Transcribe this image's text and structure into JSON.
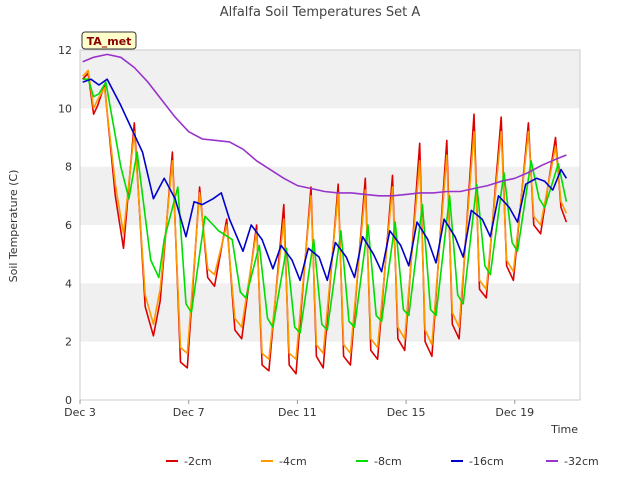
{
  "chart_data": {
    "type": "line",
    "title": "Alfalfa Soil Temperatures Set A",
    "xlabel": "Time",
    "ylabel": "Soil Temperature (C)",
    "badge": "TA_met",
    "xlim": [
      3,
      21.4
    ],
    "ylim": [
      0,
      12
    ],
    "x_ticks": [
      {
        "value": 3,
        "label": "Dec 3"
      },
      {
        "value": 7,
        "label": "Dec 7"
      },
      {
        "value": 11,
        "label": "Dec 11"
      },
      {
        "value": 15,
        "label": "Dec 15"
      },
      {
        "value": 19,
        "label": "Dec 19"
      }
    ],
    "y_ticks": [
      0,
      2,
      4,
      6,
      8,
      10,
      12
    ],
    "grid": "horizontal bands",
    "legend_position": "bottom",
    "x_unit": "day of December",
    "series": [
      {
        "name": "-2cm",
        "color": "#dd0000",
        "x": [
          3.1,
          3.3,
          3.5,
          3.65,
          3.9,
          4.3,
          4.6,
          5.0,
          5.4,
          5.7,
          5.95,
          6.4,
          6.7,
          6.95,
          7.4,
          7.7,
          7.95,
          8.4,
          8.7,
          8.95,
          9.5,
          9.7,
          9.95,
          10.5,
          10.7,
          10.95,
          11.5,
          11.7,
          11.95,
          12.5,
          12.7,
          12.95,
          13.5,
          13.7,
          13.95,
          14.5,
          14.7,
          14.95,
          15.5,
          15.7,
          15.95,
          16.5,
          16.7,
          16.95,
          17.5,
          17.7,
          17.95,
          18.5,
          18.7,
          18.95,
          19.5,
          19.7,
          19.95,
          20.5,
          20.7,
          20.9
        ],
        "y": [
          11.0,
          11.2,
          9.8,
          10.1,
          10.8,
          7.0,
          5.2,
          9.5,
          3.2,
          2.2,
          3.4,
          8.5,
          1.3,
          1.1,
          7.3,
          4.2,
          3.9,
          6.2,
          2.4,
          2.1,
          6.0,
          1.2,
          1.0,
          6.7,
          1.2,
          0.9,
          7.3,
          1.5,
          1.1,
          7.4,
          1.5,
          1.2,
          7.6,
          1.7,
          1.4,
          7.7,
          2.1,
          1.7,
          8.8,
          2.0,
          1.5,
          8.9,
          2.6,
          2.1,
          9.8,
          3.8,
          3.5,
          9.7,
          4.6,
          4.1,
          9.5,
          6.0,
          5.7,
          9.0,
          6.6,
          6.1
        ]
      },
      {
        "name": "-4cm",
        "color": "#ff9900",
        "x": [
          3.1,
          3.3,
          3.5,
          3.65,
          3.9,
          4.3,
          4.6,
          5.0,
          5.4,
          5.7,
          5.95,
          6.4,
          6.7,
          6.95,
          7.4,
          7.7,
          7.95,
          8.4,
          8.7,
          8.95,
          9.5,
          9.7,
          9.95,
          10.5,
          10.7,
          10.95,
          11.5,
          11.7,
          11.95,
          12.5,
          12.7,
          12.95,
          13.5,
          13.7,
          13.95,
          14.5,
          14.7,
          14.95,
          15.5,
          15.7,
          15.95,
          16.5,
          16.7,
          16.95,
          17.5,
          17.7,
          17.95,
          18.5,
          18.7,
          18.95,
          19.5,
          19.7,
          19.95,
          20.5,
          20.7,
          20.9
        ],
        "y": [
          11.1,
          11.3,
          10.0,
          10.3,
          10.7,
          7.4,
          5.7,
          9.2,
          3.6,
          2.6,
          3.8,
          8.2,
          1.8,
          1.6,
          7.1,
          4.5,
          4.3,
          6.0,
          2.8,
          2.5,
          5.8,
          1.6,
          1.4,
          6.2,
          1.6,
          1.4,
          7.0,
          1.9,
          1.6,
          7.1,
          1.9,
          1.6,
          7.2,
          2.1,
          1.8,
          7.3,
          2.5,
          2.1,
          8.2,
          2.4,
          1.9,
          8.4,
          3.0,
          2.5,
          9.2,
          4.1,
          3.8,
          9.2,
          4.8,
          4.4,
          9.2,
          6.3,
          6.0,
          8.7,
          6.8,
          6.4
        ]
      },
      {
        "name": "-8cm",
        "color": "#00dd00",
        "x": [
          3.1,
          3.3,
          3.5,
          3.7,
          3.95,
          4.5,
          4.8,
          5.1,
          5.6,
          5.9,
          6.1,
          6.6,
          6.9,
          7.1,
          7.6,
          7.9,
          8.1,
          8.6,
          8.9,
          9.1,
          9.6,
          9.9,
          10.1,
          10.6,
          10.9,
          11.1,
          11.6,
          11.9,
          12.1,
          12.6,
          12.9,
          13.1,
          13.6,
          13.9,
          14.1,
          14.6,
          14.9,
          15.1,
          15.6,
          15.9,
          16.1,
          16.6,
          16.9,
          17.1,
          17.6,
          17.9,
          18.1,
          18.6,
          18.9,
          19.1,
          19.6,
          19.9,
          20.1,
          20.6,
          20.9
        ],
        "y": [
          11.0,
          11.0,
          10.4,
          10.5,
          10.9,
          8.0,
          6.9,
          8.5,
          4.8,
          4.2,
          5.5,
          7.3,
          3.3,
          3.0,
          6.3,
          6.0,
          5.8,
          5.5,
          3.7,
          3.5,
          5.3,
          2.8,
          2.5,
          5.2,
          2.5,
          2.3,
          5.5,
          2.6,
          2.4,
          5.8,
          2.7,
          2.5,
          6.0,
          2.9,
          2.7,
          6.1,
          3.1,
          2.9,
          6.7,
          3.1,
          2.9,
          7.0,
          3.6,
          3.3,
          7.4,
          4.6,
          4.3,
          7.8,
          5.4,
          5.1,
          8.2,
          6.9,
          6.6,
          8.1,
          6.8
        ]
      },
      {
        "name": "-16cm",
        "color": "#0000cc",
        "x": [
          3.1,
          3.4,
          3.7,
          4.0,
          4.5,
          5.0,
          5.3,
          5.7,
          6.1,
          6.5,
          6.9,
          7.2,
          7.5,
          7.9,
          8.2,
          8.5,
          9.0,
          9.3,
          9.7,
          10.1,
          10.4,
          10.8,
          11.1,
          11.4,
          11.8,
          12.1,
          12.4,
          12.8,
          13.1,
          13.4,
          13.8,
          14.1,
          14.4,
          14.8,
          15.1,
          15.4,
          15.8,
          16.1,
          16.4,
          16.8,
          17.1,
          17.4,
          17.8,
          18.1,
          18.4,
          18.8,
          19.1,
          19.4,
          19.8,
          20.1,
          20.4,
          20.7,
          20.9
        ],
        "y": [
          10.9,
          11.0,
          10.8,
          11.0,
          10.1,
          9.1,
          8.5,
          6.9,
          7.6,
          6.9,
          5.6,
          6.8,
          6.7,
          6.9,
          7.1,
          6.2,
          5.1,
          6.0,
          5.5,
          4.5,
          5.3,
          4.8,
          4.1,
          5.2,
          4.9,
          4.1,
          5.4,
          4.9,
          4.2,
          5.6,
          5.0,
          4.4,
          5.8,
          5.3,
          4.6,
          6.1,
          5.5,
          4.7,
          6.2,
          5.6,
          4.9,
          6.5,
          6.2,
          5.6,
          7.0,
          6.6,
          6.1,
          7.4,
          7.6,
          7.5,
          7.2,
          7.9,
          7.6
        ]
      },
      {
        "name": "-32cm",
        "color": "#9933cc",
        "x": [
          3.1,
          3.5,
          4.0,
          4.5,
          5.0,
          5.5,
          6.0,
          6.5,
          7.0,
          7.5,
          8.0,
          8.5,
          9.0,
          9.5,
          10.0,
          10.5,
          11.0,
          11.5,
          12.0,
          12.5,
          13.0,
          13.5,
          14.0,
          14.5,
          15.0,
          15.5,
          16.0,
          16.5,
          17.0,
          17.5,
          18.0,
          18.5,
          19.0,
          19.5,
          20.0,
          20.5,
          20.9
        ],
        "y": [
          11.6,
          11.75,
          11.85,
          11.75,
          11.4,
          10.9,
          10.3,
          9.7,
          9.2,
          8.95,
          8.9,
          8.85,
          8.6,
          8.2,
          7.9,
          7.6,
          7.35,
          7.25,
          7.15,
          7.1,
          7.1,
          7.05,
          7.0,
          7.0,
          7.05,
          7.1,
          7.1,
          7.15,
          7.15,
          7.25,
          7.35,
          7.5,
          7.6,
          7.8,
          8.05,
          8.25,
          8.4
        ]
      }
    ]
  }
}
